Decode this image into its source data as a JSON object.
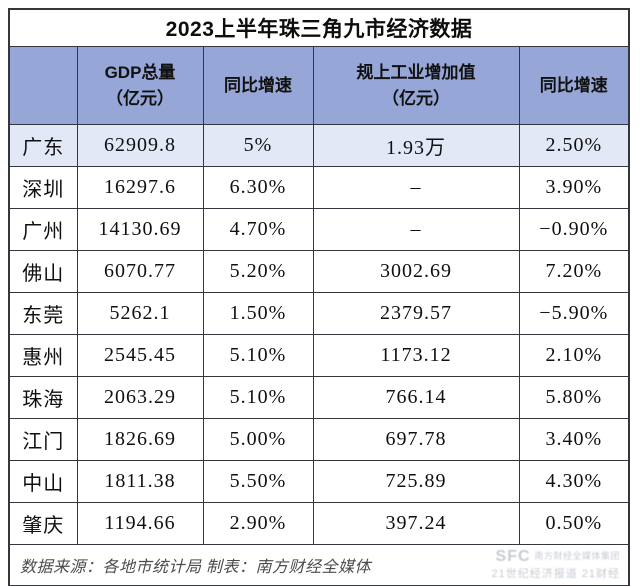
{
  "title": "2023上半年珠三角九市经济数据",
  "colors": {
    "header_bg": "#96a6d6",
    "highlight_row_bg": "#e2e8f5",
    "border": "#34373e",
    "watermark": "#c7cbd1"
  },
  "table": {
    "header_display": [
      {
        "line1": "",
        "line2": ""
      },
      {
        "line1": "GDP总量",
        "line2": "（亿元）"
      },
      {
        "line1": "同比增速",
        "line2": ""
      },
      {
        "line1": "规上工业增加值",
        "line2": "（亿元）"
      },
      {
        "line1": "同比增速",
        "line2": ""
      }
    ],
    "column_keys": [
      "city",
      "gdp",
      "gdp-yoy",
      "industrial",
      "industrial-yoy"
    ]
  },
  "chart_data": {
    "type": "table",
    "title": "2023上半年珠三角九市经济数据",
    "columns": [
      "",
      "GDP总量（亿元）",
      "同比增速",
      "规上工业增加值（亿元）",
      "同比增速"
    ],
    "rows": [
      [
        "广东",
        "62909.8",
        "5%",
        "1.93万",
        "2.50%"
      ],
      [
        "深圳",
        "16297.6",
        "6.30%",
        "–",
        "3.90%"
      ],
      [
        "广州",
        "14130.69",
        "4.70%",
        "–",
        "−0.90%"
      ],
      [
        "佛山",
        "6070.77",
        "5.20%",
        "3002.69",
        "7.20%"
      ],
      [
        "东莞",
        "5262.1",
        "1.50%",
        "2379.57",
        "−5.90%"
      ],
      [
        "惠州",
        "2545.45",
        "5.10%",
        "1173.12",
        "2.10%"
      ],
      [
        "珠海",
        "2063.29",
        "5.10%",
        "766.14",
        "5.80%"
      ],
      [
        "江门",
        "1826.69",
        "5.00%",
        "697.78",
        "3.40%"
      ],
      [
        "中山",
        "1811.38",
        "5.50%",
        "725.89",
        "4.30%"
      ],
      [
        "肇庆",
        "1194.66",
        "2.90%",
        "397.24",
        "0.50%"
      ]
    ],
    "highlight_row_index": 0,
    "missing_value_marker": "–"
  },
  "footer": {
    "note": "数据来源：各地市统计局 制表：南方财经全媒体",
    "watermark": {
      "logo": "SFC",
      "line1": "南方财经全媒体集团",
      "line2": "21世纪经济报道 21财经"
    }
  }
}
